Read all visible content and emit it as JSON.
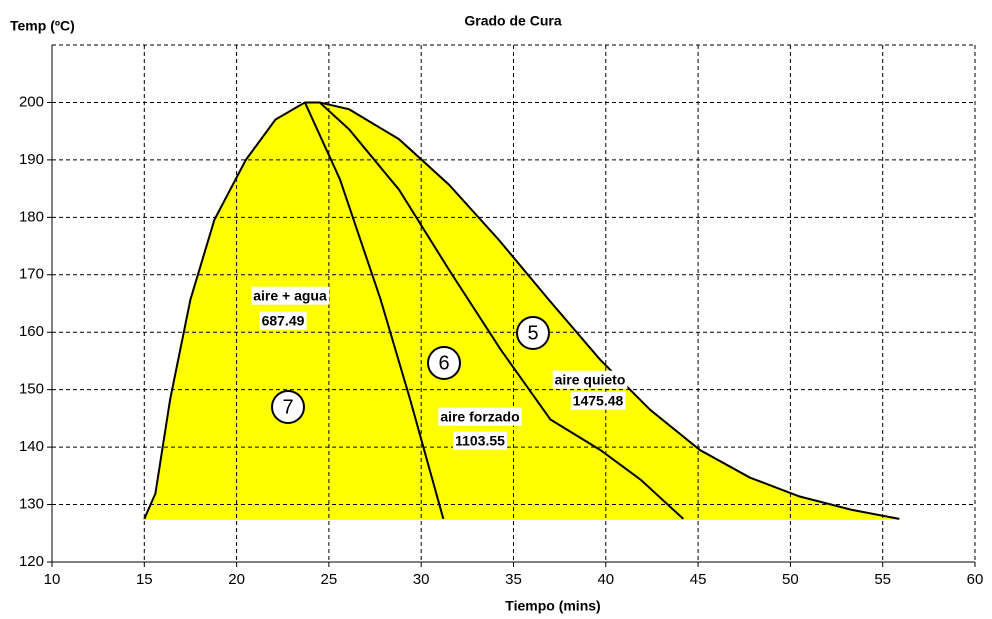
{
  "chart_data": {
    "type": "area",
    "title": "Grado de Cura",
    "y_label": "Temp (ºC)",
    "x_label": "Tiempo (mins)",
    "xlim": [
      10,
      60
    ],
    "xticks": [
      10,
      15,
      20,
      25,
      30,
      35,
      40,
      45,
      50,
      55,
      60
    ],
    "ylim": [
      120,
      210
    ],
    "yticks": [
      120,
      130,
      140,
      150,
      160,
      170,
      180,
      190,
      200
    ],
    "grid": true,
    "fill_color": "#ffff00",
    "line_color": "#000000",
    "series": [
      {
        "x": [
          15,
          15.6,
          16.4,
          17.5,
          18.8,
          20.5,
          22.1,
          23.7,
          24.5,
          26.1,
          28.8,
          31.5,
          34.2,
          36.9,
          39.7,
          42.4,
          45.1,
          47.8,
          50.5,
          53.3,
          55.9
        ],
        "values": [
          127.5,
          131.9,
          148.3,
          165.7,
          179.6,
          190,
          197,
          200,
          200,
          198.8,
          193.6,
          185.7,
          176.1,
          165.7,
          155.2,
          146.5,
          139.5,
          134.7,
          131.4,
          129.1,
          127.5
        ]
      },
      {
        "x": [
          23.7,
          25.6,
          27.8,
          29.4,
          31.2
        ],
        "values": [
          200,
          186.6,
          165.7,
          148.3,
          127.5
        ]
      },
      {
        "x": [
          24.5,
          26.1,
          28.8,
          31.5,
          34.3,
          37,
          39.7,
          41.9,
          44.2
        ],
        "values": [
          200,
          195.3,
          184.8,
          170.9,
          157,
          144.8,
          139.5,
          134.3,
          127.5
        ]
      }
    ],
    "annotations": [
      {
        "text": "aire + agua"
      },
      {
        "value": 687.49
      },
      {
        "text": "aire forzado"
      },
      {
        "value": 1103.55
      },
      {
        "text": "aire quieto"
      },
      {
        "value": 1475.48
      },
      {
        "zone": 7
      },
      {
        "zone": 6
      },
      {
        "zone": 5
      }
    ]
  }
}
